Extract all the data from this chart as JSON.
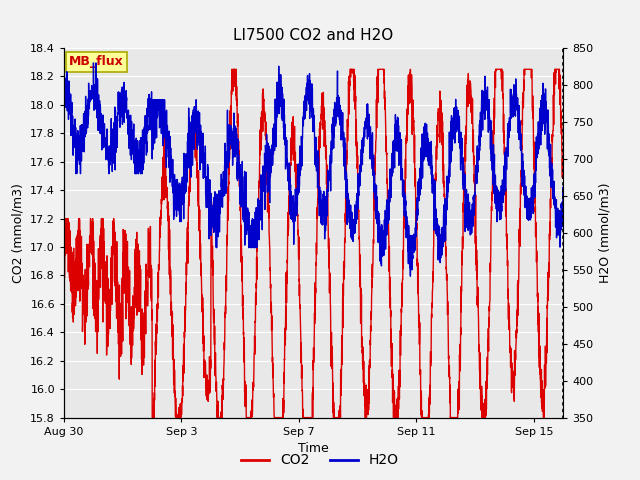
{
  "title": "LI7500 CO2 and H2O",
  "xlabel": "Time",
  "ylabel_left": "CO2 (mmol/m3)",
  "ylabel_right": "H2O (mmol/m3)",
  "co2_ylim": [
    15.8,
    18.4
  ],
  "h2o_ylim": [
    350,
    850
  ],
  "co2_yticks": [
    15.8,
    16.0,
    16.2,
    16.4,
    16.6,
    16.8,
    17.0,
    17.2,
    17.4,
    17.6,
    17.8,
    18.0,
    18.2,
    18.4
  ],
  "h2o_yticks": [
    350,
    400,
    450,
    500,
    550,
    600,
    650,
    700,
    750,
    800,
    850
  ],
  "xtick_labels": [
    "Aug 30",
    "Sep 3",
    "Sep 7",
    "Sep 11",
    "Sep 15"
  ],
  "xtick_positions": [
    0,
    4,
    8,
    12,
    16
  ],
  "xlim": [
    0,
    17
  ],
  "bg_color": "#f2f2f2",
  "plot_bg_color": "#e8e8e8",
  "co2_color": "#dd0000",
  "h2o_color": "#0000cc",
  "annotation_text": "MB_flux",
  "annotation_bg": "#ffff99",
  "annotation_border": "#aaaa00",
  "legend_co2": "CO2",
  "legend_h2o": "H2O",
  "title_fontsize": 11,
  "label_fontsize": 9,
  "tick_fontsize": 8,
  "linewidth": 1.0
}
